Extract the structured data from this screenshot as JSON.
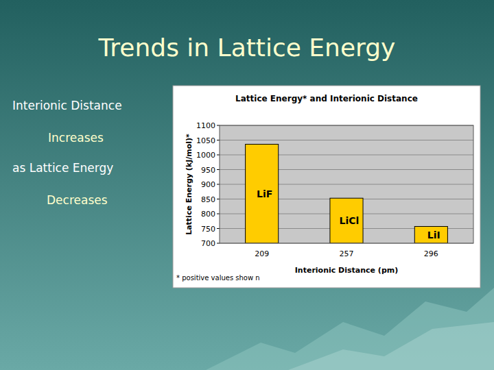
{
  "slide": {
    "title": "Trends in Lattice Energy",
    "lines": [
      "Interionic Distance",
      "Increases",
      "as Lattice Energy",
      "Decreases"
    ]
  },
  "chart_data": {
    "type": "bar",
    "title": "Lattice Energy* and Interionic Distance",
    "x_label": "Interionic Distance (pm)",
    "y_label": "Lattice Energy (kJ/mol)*",
    "categories": [
      "209",
      "257",
      "296"
    ],
    "values": [
      1036,
      853,
      757
    ],
    "annotations": [
      "LiF",
      "LiCl",
      "LiI"
    ],
    "note": "* positive values show n",
    "color": "#ffcc00",
    "ylim": [
      700,
      1100
    ],
    "yticks": [
      700,
      750,
      800,
      850,
      900,
      950,
      1000,
      1050,
      1100
    ],
    "grid": true
  }
}
